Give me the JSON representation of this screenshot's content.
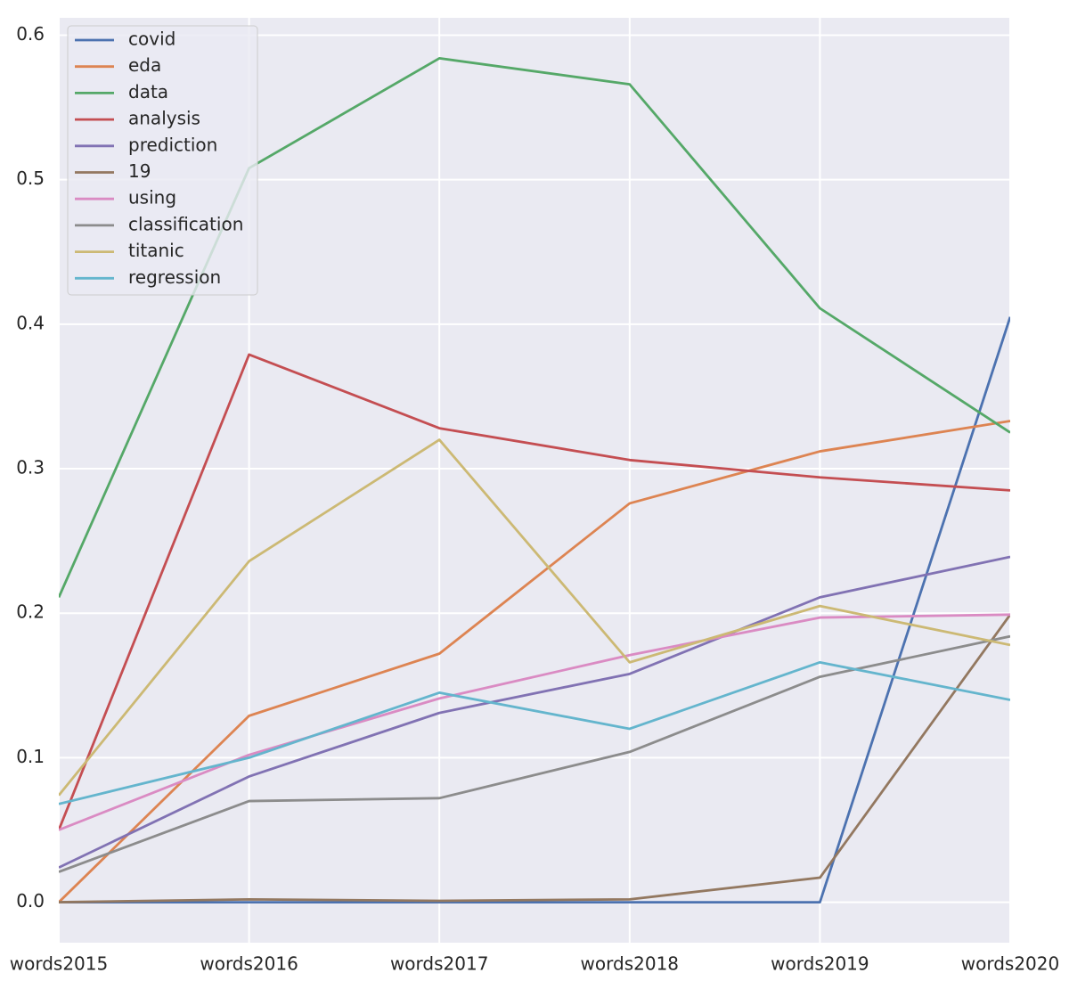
{
  "chart_data": {
    "type": "line",
    "categories": [
      "words2015",
      "words2016",
      "words2017",
      "words2018",
      "words2019",
      "words2020"
    ],
    "series": [
      {
        "name": "covid",
        "color": "#4c72b0",
        "values": [
          0,
          0,
          0,
          0,
          0,
          0.405
        ]
      },
      {
        "name": "eda",
        "color": "#dd8452",
        "values": [
          0,
          0.129,
          0.172,
          0.276,
          0.312,
          0.333
        ]
      },
      {
        "name": "data",
        "color": "#55a868",
        "values": [
          0.211,
          0.508,
          0.584,
          0.566,
          0.411,
          0.325
        ]
      },
      {
        "name": "analysis",
        "color": "#c44e52",
        "values": [
          0.05,
          0.379,
          0.328,
          0.306,
          0.294,
          0.285
        ]
      },
      {
        "name": "prediction",
        "color": "#8172b3",
        "values": [
          0.024,
          0.087,
          0.131,
          0.158,
          0.211,
          0.239
        ]
      },
      {
        "name": "19",
        "color": "#937860",
        "values": [
          0,
          0.002,
          0.001,
          0.002,
          0.017,
          0.199
        ]
      },
      {
        "name": "using",
        "color": "#da8bc3",
        "values": [
          0.05,
          0.102,
          0.141,
          0.171,
          0.197,
          0.199
        ]
      },
      {
        "name": "classification",
        "color": "#8c8c8c",
        "values": [
          0.021,
          0.07,
          0.072,
          0.104,
          0.156,
          0.184
        ]
      },
      {
        "name": "titanic",
        "color": "#ccb974",
        "values": [
          0.074,
          0.236,
          0.32,
          0.166,
          0.205,
          0.178
        ]
      },
      {
        "name": "regression",
        "color": "#64b5cd",
        "values": [
          0.068,
          0.1,
          0.145,
          0.12,
          0.166,
          0.14
        ]
      }
    ],
    "ylim": [
      -0.028,
      0.612
    ],
    "yticks": [
      {
        "value": 0,
        "label": "0.0"
      },
      0.1,
      0.2,
      0.3,
      0.4,
      0.5,
      0.6
    ],
    "grid": true,
    "legend": "upper left"
  }
}
